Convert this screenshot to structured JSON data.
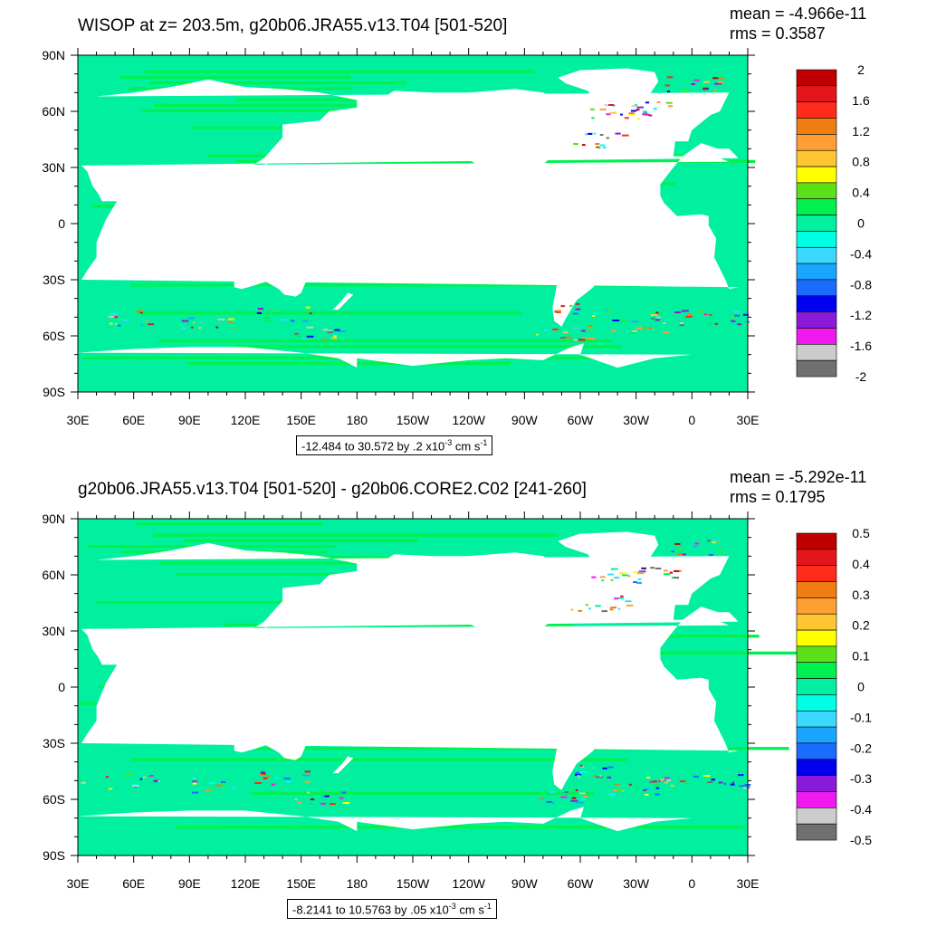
{
  "panels": [
    {
      "title": "WISOP at z= 203.5m, g20b06.JRA55.v13.T04 [501-520]",
      "stats": {
        "mean": "mean = -4.966e-11",
        "rms": "rms = 0.3587"
      },
      "note": {
        "range": "-12.484 to 30.572 by .2 x10",
        "exp": "-3",
        "unit1": " cm s",
        "exp2": "-1"
      },
      "colorbar": {
        "labels": [
          "2",
          "1.6",
          "1.2",
          "0.8",
          "0.4",
          "0",
          "-0.4",
          "-0.8",
          "-1.2",
          "-1.6",
          "-2"
        ]
      }
    },
    {
      "title": "g20b06.JRA55.v13.T04 [501-520] - g20b06.CORE2.C02 [241-260]",
      "stats": {
        "mean": "mean = -5.292e-11",
        "rms": "rms = 0.1795"
      },
      "note": {
        "range": "-8.2141 to 10.5763 by .05 x10",
        "exp": "-3",
        "unit1": " cm s",
        "exp2": "-1"
      },
      "colorbar": {
        "labels": [
          "0.5",
          "0.4",
          "0.3",
          "0.2",
          "0.1",
          "0",
          "-0.1",
          "-0.2",
          "-0.3",
          "-0.4",
          "-0.5"
        ]
      }
    }
  ],
  "axes": {
    "lat_labels": [
      "90N",
      "60N",
      "30N",
      "0",
      "30S",
      "60S",
      "90S"
    ],
    "lon_labels": [
      "30E",
      "60E",
      "90E",
      "120E",
      "150E",
      "180",
      "150W",
      "120W",
      "90W",
      "60W",
      "30W",
      "0",
      "30E"
    ]
  },
  "colors": {
    "palette": [
      "#c00000",
      "#e3171b",
      "#ff2b1b",
      "#f07d13",
      "#ff9f33",
      "#ffc533",
      "#ffff00",
      "#5ce01a",
      "#00f050",
      "#00f0a0",
      "#00ffe6",
      "#3ad8ff",
      "#1aa6ff",
      "#1a6cff",
      "#0000ee",
      "#8a1ad8",
      "#ee1aee",
      "#cccccc",
      "#707070"
    ],
    "ocean_base": "#00f0a0",
    "ocean_alt": "#00f050"
  }
}
